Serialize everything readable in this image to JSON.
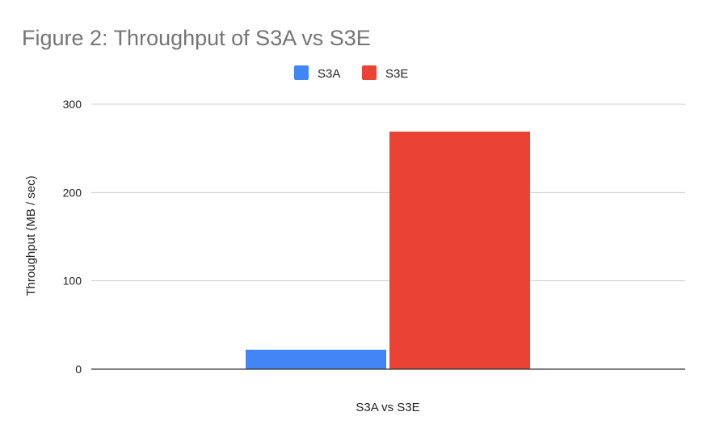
{
  "chart_data": {
    "type": "bar",
    "title": "Figure 2: Throughput of S3A vs S3E",
    "xlabel": "",
    "ylabel": "Throughput (MB / sec)",
    "categories": [
      "S3A vs S3E"
    ],
    "series": [
      {
        "name": "S3A",
        "values": [
          22
        ],
        "color": "#4285f4"
      },
      {
        "name": "S3E",
        "values": [
          269
        ],
        "color": "#ea4335"
      }
    ],
    "ylim": [
      0,
      300
    ],
    "yticks": [
      0,
      100,
      200,
      300
    ],
    "grid": true,
    "legend_position": "top"
  }
}
